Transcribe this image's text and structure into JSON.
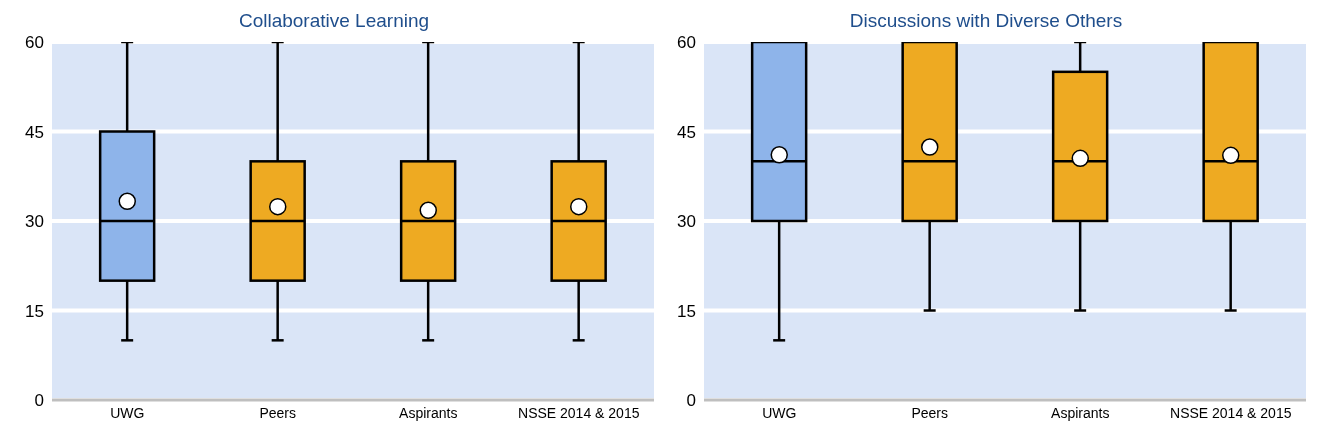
{
  "chart_data": [
    {
      "type": "box",
      "title": "Collaborative Learning",
      "categories": [
        "UWG",
        "Peers",
        "Aspirants",
        "NSSE 2014 & 2015"
      ],
      "colors": [
        "#8eb4ea",
        "#eeaa22",
        "#eeaa22",
        "#eeaa22"
      ],
      "boxes": [
        {
          "low": 10,
          "q1": 20,
          "median": 30,
          "q3": 45,
          "high": 60,
          "mean": 33.3
        },
        {
          "low": 10,
          "q1": 20,
          "median": 30,
          "q3": 40,
          "high": 60,
          "mean": 32.4
        },
        {
          "low": 10,
          "q1": 20,
          "median": 30,
          "q3": 40,
          "high": 60,
          "mean": 31.8
        },
        {
          "low": 10,
          "q1": 20,
          "median": 30,
          "q3": 40,
          "high": 60,
          "mean": 32.4
        }
      ],
      "ylim": [
        0,
        60
      ],
      "yticks": [
        0,
        15,
        30,
        45,
        60
      ],
      "grid": "y"
    },
    {
      "type": "box",
      "title": "Discussions with Diverse Others",
      "categories": [
        "UWG",
        "Peers",
        "Aspirants",
        "NSSE 2014 & 2015"
      ],
      "colors": [
        "#8eb4ea",
        "#eeaa22",
        "#eeaa22",
        "#eeaa22"
      ],
      "boxes": [
        {
          "low": 10,
          "q1": 30,
          "median": 40,
          "q3": 60,
          "high": 60,
          "mean": 41.1
        },
        {
          "low": 15,
          "q1": 30,
          "median": 40,
          "q3": 60,
          "high": 60,
          "mean": 42.4
        },
        {
          "low": 15,
          "q1": 30,
          "median": 40,
          "q3": 55,
          "high": 60,
          "mean": 40.5
        },
        {
          "low": 15,
          "q1": 30,
          "median": 40,
          "q3": 60,
          "high": 60,
          "mean": 41.0
        }
      ],
      "ylim": [
        0,
        60
      ],
      "yticks": [
        0,
        15,
        30,
        45,
        60
      ],
      "grid": "y"
    }
  ]
}
